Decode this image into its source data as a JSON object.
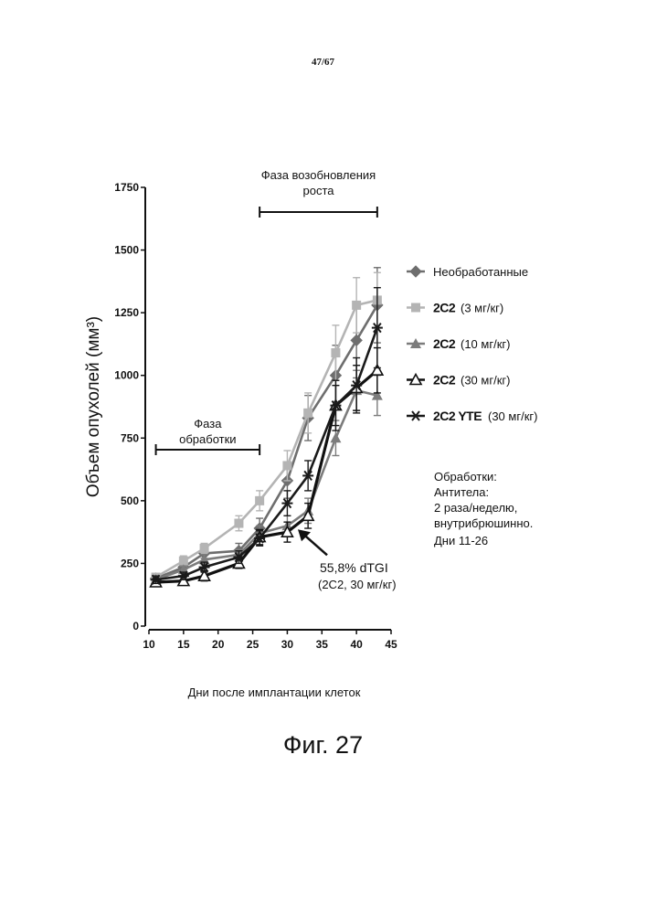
{
  "page_number": "47/67",
  "figure_caption": "Фиг. 27",
  "notes": {
    "line1": "Обработки:",
    "line2": "Антитела:",
    "line3": "2 раза/неделю,",
    "line4": "внутрибрюшинно.",
    "line5": "Дни 11-26"
  },
  "colors": {
    "untreated": "#6e6e6e",
    "c2c2_3": "#b4b4b4",
    "c2c2_10": "#7c7c7c",
    "c2c2_30": "#111111",
    "yte_30": "#1a1a1a"
  },
  "chart_data": {
    "type": "line",
    "title": "",
    "xlabel": "Дни после имплантации клеток",
    "ylabel": "Объем опухолей (мм³)",
    "xlim": [
      10,
      45
    ],
    "ylim": [
      0,
      1750
    ],
    "x_ticks": [
      "10",
      "15",
      "20",
      "25",
      "30",
      "35",
      "40",
      "45"
    ],
    "y_ticks": [
      "0",
      "250",
      "500",
      "750",
      "1000",
      "1250",
      "1500",
      "1750"
    ],
    "x_tick_values": [
      10,
      15,
      20,
      25,
      30,
      35,
      40,
      45
    ],
    "y_tick_values": [
      0,
      250,
      500,
      750,
      1000,
      1250,
      1500,
      1750
    ],
    "x": [
      11,
      15,
      18,
      23,
      26,
      30,
      33,
      37,
      40,
      43
    ],
    "series": [
      {
        "name": "Необработанные",
        "code": "",
        "dose": "",
        "marker": "diamond",
        "values": [
          190,
          235,
          290,
          300,
          390,
          580,
          830,
          1000,
          1140,
          1280
        ],
        "errors": [
          15,
          15,
          20,
          30,
          40,
          70,
          90,
          120,
          150,
          150
        ]
      },
      {
        "name": "2C2",
        "code": "2C2",
        "dose": "(3 мг/кг)",
        "marker": "square",
        "values": [
          195,
          260,
          310,
          410,
          500,
          640,
          850,
          1090,
          1280,
          1300
        ],
        "errors": [
          15,
          20,
          20,
          30,
          40,
          60,
          80,
          110,
          110,
          110
        ]
      },
      {
        "name": "2C2",
        "code": "2C2",
        "dose": "(10 мг/кг)",
        "marker": "triangle",
        "values": [
          185,
          225,
          265,
          285,
          370,
          400,
          460,
          750,
          940,
          920
        ],
        "errors": [
          15,
          15,
          20,
          20,
          30,
          40,
          50,
          70,
          80,
          80
        ]
      },
      {
        "name": "2C2",
        "code": "2C2",
        "dose": "(30 мг/кг)",
        "marker": "triangle-open",
        "values": [
          175,
          180,
          200,
          250,
          355,
          375,
          440,
          880,
          950,
          1020
        ],
        "errors": [
          15,
          15,
          20,
          20,
          30,
          40,
          50,
          80,
          90,
          90
        ]
      },
      {
        "name": "2C2 YTE",
        "code": "2C2 YTE",
        "dose": "(30 мг/кг)",
        "marker": "star",
        "values": [
          185,
          200,
          235,
          275,
          350,
          490,
          600,
          880,
          960,
          1190
        ],
        "errors": [
          15,
          15,
          20,
          25,
          30,
          50,
          60,
          100,
          110,
          160
        ]
      }
    ],
    "annotations": {
      "treatment_phase": {
        "label_line1": "Фаза",
        "label_line2": "обработки",
        "x_start": 11,
        "x_end": 26
      },
      "regrowth_phase": {
        "label_line1": "Фаза возобновления",
        "label_line2": "роста",
        "x_start": 26,
        "x_end": 43
      },
      "dtgi_value": "55,8% dTGI",
      "dtgi_group": "(2C2, 30 мг/кг)",
      "arrow_target": {
        "x": 31,
        "y": 400
      }
    },
    "legend_position": "right"
  }
}
